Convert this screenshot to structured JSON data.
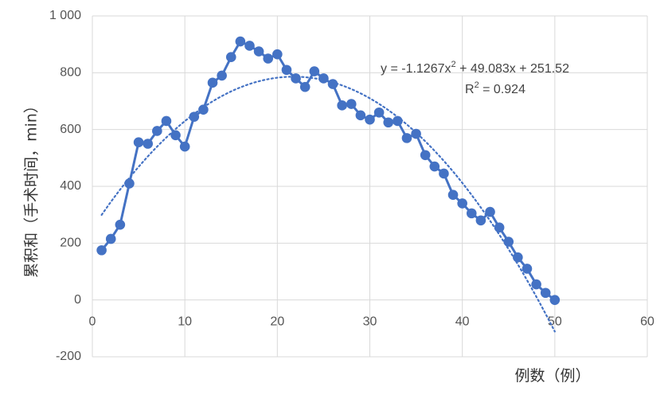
{
  "chart_data": {
    "type": "scatter",
    "ylabel": "累积和（手术时间，min）",
    "xlabel": "例数（例）",
    "xlim": [
      0,
      60
    ],
    "ylim": [
      -200,
      1000
    ],
    "x_ticks": [
      "0",
      "10",
      "20",
      "30",
      "40",
      "50",
      "60"
    ],
    "y_ticks": [
      "-200",
      "0",
      "200",
      "400",
      "600",
      "800",
      "1 000"
    ],
    "grid": true,
    "series": [
      {
        "color": "#4472c4",
        "x": [
          1,
          2,
          3,
          4,
          5,
          6,
          7,
          8,
          9,
          10,
          11,
          12,
          13,
          14,
          15,
          16,
          17,
          18,
          19,
          20,
          21,
          22,
          23,
          24,
          25,
          26,
          27,
          28,
          29,
          30,
          31,
          32,
          33,
          34,
          35,
          36,
          37,
          38,
          39,
          40,
          41,
          42,
          43,
          44,
          45,
          46,
          47,
          48,
          49,
          50
        ],
        "y": [
          175,
          215,
          265,
          410,
          555,
          550,
          595,
          630,
          580,
          540,
          645,
          670,
          765,
          790,
          855,
          910,
          895,
          875,
          850,
          865,
          810,
          780,
          750,
          805,
          780,
          760,
          685,
          690,
          650,
          635,
          660,
          625,
          630,
          570,
          585,
          510,
          470,
          445,
          370,
          340,
          305,
          280,
          310,
          255,
          205,
          150,
          110,
          55,
          25,
          0
        ]
      }
    ],
    "trendline": {
      "type": "polynomial",
      "order": 2,
      "coefficients": [
        -1.1267,
        49.083,
        251.52
      ],
      "x_range": [
        1,
        50
      ],
      "color": "#4472c4",
      "style": "dotted"
    },
    "annotations": {
      "equation_prefix": "y = -1.1267x",
      "equation_sup": "2",
      "equation_suffix": " + 49.083x + 251.52",
      "r2_prefix": "R",
      "r2_sup": "2",
      "r2_suffix": " = 0.924"
    }
  }
}
